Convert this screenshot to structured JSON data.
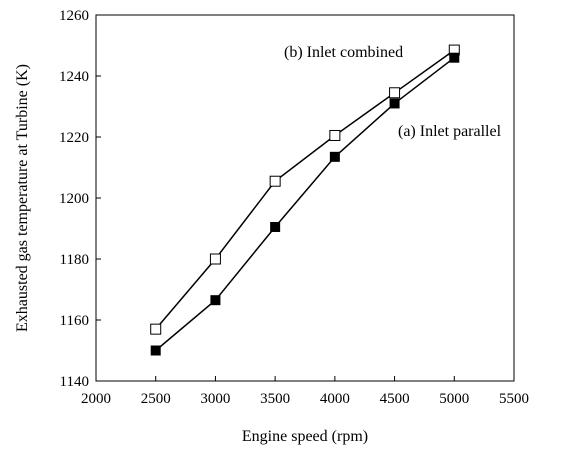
{
  "chart_data": {
    "type": "line",
    "title": "",
    "xlabel": "Engine speed (rpm)",
    "ylabel": "Exhausted gas temperature at Turbine (K)",
    "xlim": [
      2000,
      5500
    ],
    "ylim": [
      1140,
      1260
    ],
    "x_ticks": [
      2000,
      2500,
      3000,
      3500,
      4000,
      4500,
      5000,
      5500
    ],
    "y_ticks": [
      1140,
      1160,
      1180,
      1200,
      1220,
      1240,
      1260
    ],
    "grid": false,
    "series": [
      {
        "name": "(b) Inlet combined",
        "marker": "open-square",
        "color": "#000000",
        "x": [
          2500,
          3000,
          3500,
          4000,
          4500,
          5000
        ],
        "y": [
          1157,
          1180,
          1205.5,
          1220.5,
          1234.5,
          1248.5
        ]
      },
      {
        "name": "(a) Inlet parallel",
        "marker": "filled-square",
        "color": "#000000",
        "x": [
          2500,
          3000,
          3500,
          4000,
          4500,
          5000
        ],
        "y": [
          1150,
          1166.5,
          1190.5,
          1213.5,
          1231,
          1246
        ]
      }
    ]
  }
}
